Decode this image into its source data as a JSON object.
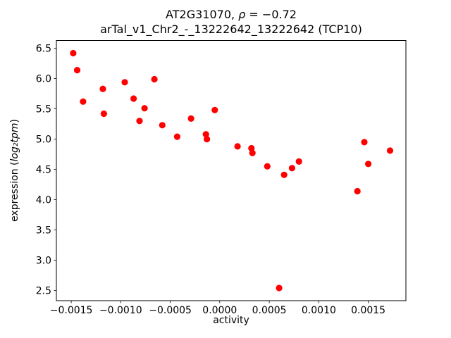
{
  "figure": {
    "title_prefix": "AT2G31070, ",
    "title_rho": "ρ",
    "title_eq": " = −0.72",
    "subtitle": "arTal_v1_Chr2_-_13222642_13222642 (TCP10)",
    "xlabel": "activity",
    "ylabel_prefix": "expression (",
    "ylabel_math": "log₂tpm",
    "ylabel_suffix": ")"
  },
  "chart_data": {
    "type": "scatter",
    "title": "AT2G31070, ρ = −0.72",
    "subtitle": "arTal_v1_Chr2_-_13222642_13222642 (TCP10)",
    "xlabel": "activity",
    "ylabel": "expression (log2 tpm)",
    "marker_color": "#ff0000",
    "legend": "none",
    "grid": false,
    "xlim": [
      -0.00165,
      0.00188
    ],
    "ylim": [
      2.33,
      6.63
    ],
    "x_ticks": [
      -0.0015,
      -0.001,
      -0.0005,
      0.0,
      0.0005,
      0.001,
      0.0015
    ],
    "x_tick_labels": [
      "−0.0015",
      "−0.0010",
      "−0.0005",
      "0.0000",
      "0.0005",
      "0.0010",
      "0.0015"
    ],
    "y_ticks": [
      2.5,
      3.0,
      3.5,
      4.0,
      4.5,
      5.0,
      5.5,
      6.0,
      6.5
    ],
    "y_tick_labels": [
      "2.5",
      "3.0",
      "3.5",
      "4.0",
      "4.5",
      "5.0",
      "5.5",
      "6.0",
      "6.5"
    ],
    "points": [
      [
        -0.00148,
        6.42
      ],
      [
        -0.00144,
        6.14
      ],
      [
        -0.00138,
        5.62
      ],
      [
        -0.00118,
        5.83
      ],
      [
        -0.00117,
        5.42
      ],
      [
        -0.00096,
        5.94
      ],
      [
        -0.00087,
        5.67
      ],
      [
        -0.00081,
        5.3
      ],
      [
        -0.00076,
        5.51
      ],
      [
        -0.00066,
        5.99
      ],
      [
        -0.00058,
        5.23
      ],
      [
        -0.00043,
        5.04
      ],
      [
        -0.00029,
        5.34
      ],
      [
        -0.00014,
        5.08
      ],
      [
        -0.00013,
        5.0
      ],
      [
        -5e-05,
        5.48
      ],
      [
        0.00018,
        4.88
      ],
      [
        0.00032,
        4.85
      ],
      [
        0.00033,
        4.77
      ],
      [
        0.00048,
        4.55
      ],
      [
        0.0006,
        2.54
      ],
      [
        0.00065,
        4.41
      ],
      [
        0.00073,
        4.52
      ],
      [
        0.0008,
        4.63
      ],
      [
        0.00139,
        4.14
      ],
      [
        0.00146,
        4.95
      ],
      [
        0.0015,
        4.59
      ],
      [
        0.00172,
        4.81
      ]
    ]
  }
}
